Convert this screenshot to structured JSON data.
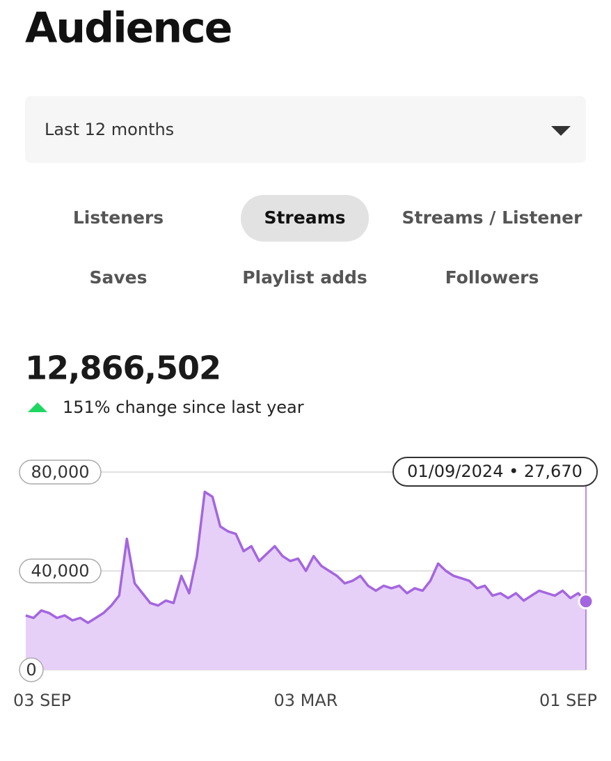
{
  "header": {
    "title": "Audience"
  },
  "dropdown": {
    "label": "Last 12 months"
  },
  "tabs": [
    "Listeners",
    "Streams",
    "Streams / Listener",
    "Saves",
    "Playlist adds",
    "Followers"
  ],
  "selected_tab": 1,
  "total": "12,866,502",
  "change": "151% change since last year",
  "chart_data": {
    "type": "area",
    "categories": [
      "03 SEP",
      null,
      null,
      null,
      null,
      null,
      null,
      null,
      null,
      null,
      null,
      null,
      null,
      null,
      null,
      null,
      null,
      null,
      null,
      null,
      null,
      null,
      null,
      null,
      null,
      null,
      null,
      null,
      null,
      null,
      null,
      null,
      null,
      null,
      null,
      null,
      "03 MAR",
      null,
      null,
      null,
      null,
      null,
      null,
      null,
      null,
      null,
      null,
      null,
      null,
      null,
      null,
      null,
      null,
      null,
      null,
      null,
      null,
      null,
      null,
      null,
      null,
      null,
      null,
      null,
      null,
      null,
      null,
      null,
      null,
      null,
      null,
      null,
      "01 SEP"
    ],
    "values": [
      22000,
      21000,
      24000,
      23000,
      21000,
      22000,
      20000,
      21000,
      19000,
      21000,
      23000,
      26000,
      30000,
      53000,
      35000,
      31000,
      27000,
      26000,
      28000,
      27000,
      38000,
      31000,
      46000,
      72000,
      70000,
      58000,
      56000,
      55000,
      48000,
      50000,
      44000,
      47000,
      50000,
      46000,
      44000,
      45000,
      40000,
      46000,
      42000,
      40000,
      38000,
      35000,
      36000,
      38000,
      34000,
      32000,
      34000,
      33000,
      34000,
      31000,
      33000,
      32000,
      36000,
      43000,
      40000,
      38000,
      37000,
      36000,
      33000,
      34000,
      30000,
      31000,
      29000,
      31000,
      28000,
      30000,
      32000,
      31000,
      30000,
      32000,
      29000,
      31000,
      27670
    ],
    "color": "#a465e0",
    "area_color": "#e6d0f8",
    "ylim": [
      0,
      80000
    ],
    "yticks": [
      0,
      {
        "value": 40000,
        "label": "40,000"
      },
      {
        "value": 80000,
        "label": "80,000"
      }
    ],
    "grid": true,
    "annotation": "01/09/2024 • 27,670"
  }
}
